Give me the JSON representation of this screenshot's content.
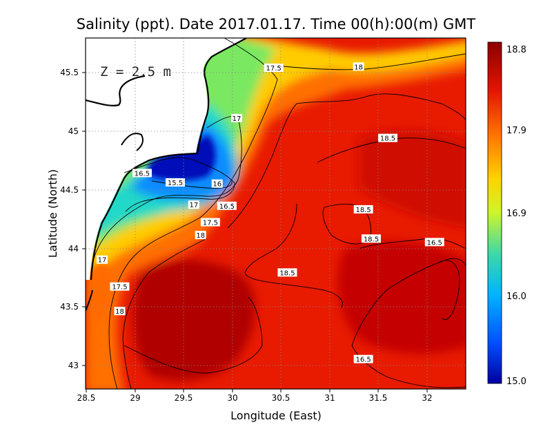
{
  "chart_data": {
    "type": "heatmap",
    "title": "Salinity (ppt). Date 2017.01.17. Time 00(h):00(m) GMT",
    "xlabel": "Longitude (East)",
    "ylabel": "Latitude (North)",
    "depth_annotation": "Z = 2.5 m",
    "xlim": [
      28.5,
      32.4
    ],
    "ylim": [
      42.8,
      45.8
    ],
    "x_ticks": [
      "28.5",
      "29",
      "29.5",
      "30",
      "30.5",
      "31",
      "31.5",
      "32"
    ],
    "y_ticks": [
      "43",
      "43.5",
      "44",
      "44.5",
      "45",
      "45.5"
    ],
    "grid": true,
    "colorbar": {
      "min": 15.0,
      "max": 18.8,
      "labels": [
        "18.8",
        "17.9",
        "16.9",
        "16.0",
        "15.0"
      ],
      "colors": [
        "#8b0000",
        "#e21400",
        "#ff7a00",
        "#ffd200",
        "#cdf52c",
        "#3dd9a7",
        "#00b4ff",
        "#0050ff",
        "#0000a0"
      ]
    },
    "contour_labels": [
      {
        "text": "17.5",
        "lon": 30.43,
        "lat": 45.54
      },
      {
        "text": "18",
        "lon": 31.3,
        "lat": 45.55
      },
      {
        "text": "17",
        "lon": 30.05,
        "lat": 45.11
      },
      {
        "text": "18.5",
        "lon": 31.6,
        "lat": 44.94
      },
      {
        "text": "16.5",
        "lon": 29.08,
        "lat": 44.64
      },
      {
        "text": "15.5",
        "lon": 29.42,
        "lat": 44.56
      },
      {
        "text": "16",
        "lon": 29.85,
        "lat": 44.55
      },
      {
        "text": "17",
        "lon": 29.61,
        "lat": 44.37
      },
      {
        "text": "16.5",
        "lon": 29.95,
        "lat": 44.36
      },
      {
        "text": "17.5",
        "lon": 29.78,
        "lat": 44.22
      },
      {
        "text": "18",
        "lon": 29.68,
        "lat": 44.11
      },
      {
        "text": "18.5",
        "lon": 31.35,
        "lat": 44.33
      },
      {
        "text": "18.5",
        "lon": 31.43,
        "lat": 44.08
      },
      {
        "text": "16.5",
        "lon": 32.08,
        "lat": 44.05
      },
      {
        "text": "17",
        "lon": 28.67,
        "lat": 43.9
      },
      {
        "text": "18.5",
        "lon": 30.57,
        "lat": 43.79
      },
      {
        "text": "17.5",
        "lon": 28.85,
        "lat": 43.67
      },
      {
        "text": "18",
        "lon": 28.85,
        "lat": 43.46
      },
      {
        "text": "16.5",
        "lon": 31.35,
        "lat": 43.05
      }
    ]
  }
}
